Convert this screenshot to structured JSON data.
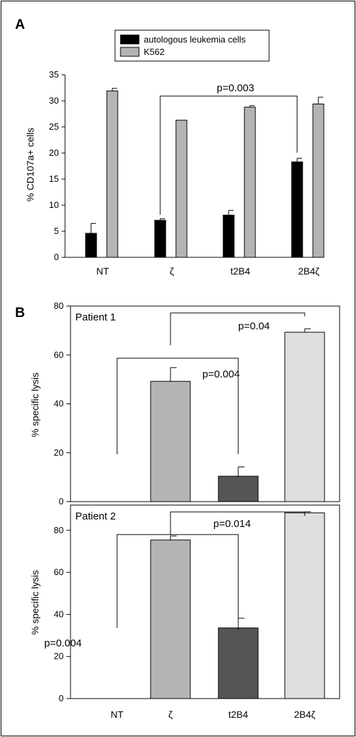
{
  "chart_data": [
    {
      "panel": "A",
      "type": "bar",
      "categories": [
        "NT",
        "ζ",
        "t2B4",
        "2B4ζ"
      ],
      "ylabel": "% CD107a+ cells",
      "ylim": [
        0,
        35
      ],
      "yticks": [
        0,
        5,
        10,
        15,
        20,
        25,
        30,
        35
      ],
      "legend_position": "top",
      "series": [
        {
          "name": "autologous leukemia cells",
          "color": "#000000",
          "values": [
            4.6,
            7.1,
            8.1,
            18.3
          ],
          "errors": [
            1.9,
            0.3,
            0.9,
            0.7
          ]
        },
        {
          "name": "K562",
          "color": "#b4b4b4",
          "values": [
            31.9,
            26.3,
            28.8,
            29.4
          ],
          "errors": [
            0.5,
            0,
            0.3,
            1.3
          ]
        }
      ],
      "annotations": [
        {
          "text": "p=0.003",
          "from": 1,
          "to": 3
        }
      ]
    },
    {
      "panel": "B",
      "title": "Patient 1",
      "type": "bar",
      "categories": [
        "NT",
        "ζ",
        "t2B4",
        "2B4ζ"
      ],
      "ylabel": "% specific lysis",
      "ylim": [
        0,
        80
      ],
      "yticks": [
        0,
        20,
        40,
        60,
        80
      ],
      "values": [
        0,
        49.2,
        10.4,
        69.3
      ],
      "errors": [
        0,
        5.6,
        3.8,
        1.4
      ],
      "colors": [
        "#b4b4b4",
        "#b4b4b4",
        "#555555",
        "#dedede"
      ],
      "annotations": [
        {
          "text": "p=0.004",
          "from": 0,
          "to": 2
        },
        {
          "text": "p=0.04",
          "from": 1,
          "to": 3
        }
      ]
    },
    {
      "title": "Patient 2",
      "type": "bar",
      "categories": [
        "NT",
        "ζ",
        "t2B4",
        "2B4ζ"
      ],
      "ylabel": "% specific lysis",
      "ylim": [
        0,
        92
      ],
      "yticks": [
        0,
        20,
        40,
        60,
        80
      ],
      "values": [
        0,
        75.4,
        33.6,
        88.3
      ],
      "errors": [
        0,
        1.9,
        4.6,
        0.5
      ],
      "colors": [
        "#b4b4b4",
        "#b4b4b4",
        "#555555",
        "#dedede"
      ],
      "annotations": [
        {
          "text": "p=0.004",
          "from": 0,
          "to": 2
        },
        {
          "text": "p=0.014",
          "from": 1,
          "to": 3
        }
      ]
    }
  ]
}
